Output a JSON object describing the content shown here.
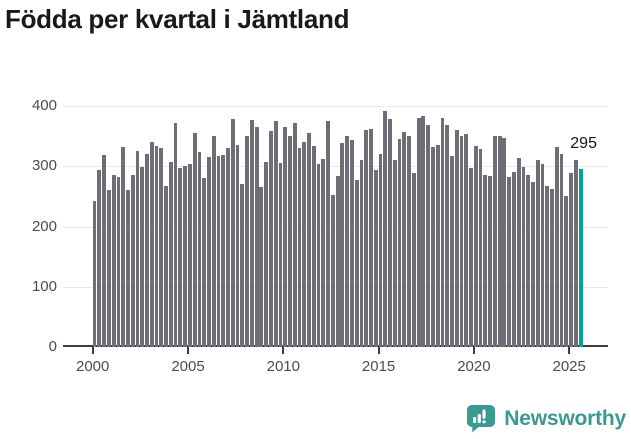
{
  "title": "Födda per kvartal i Jämtland",
  "annotation": {
    "text": "295"
  },
  "footer": {
    "brand": "Newsworthy"
  },
  "colors": {
    "bar": "#6e6e76",
    "highlight": "#00a29a",
    "grid": "#e9e9e9",
    "axis": "#3d3d3d",
    "tick_label": "#4c4c4c",
    "title": "#191919",
    "annotation": "#141414",
    "brand": "#3a9a92"
  },
  "chart_data": {
    "type": "bar",
    "title": "Födda per kvartal i Jämtland",
    "xlabel": "",
    "ylabel": "",
    "ylim": [
      0,
      400
    ],
    "yticks": [
      0,
      100,
      200,
      300,
      400
    ],
    "xticks": [
      2000,
      2005,
      2010,
      2015,
      2020,
      2025
    ],
    "grid": "horizontal",
    "legend": null,
    "highlight_index": 102,
    "highlight_label": "295",
    "categories": [
      "2000Q1",
      "2000Q2",
      "2000Q3",
      "2000Q4",
      "2001Q1",
      "2001Q2",
      "2001Q3",
      "2001Q4",
      "2002Q1",
      "2002Q2",
      "2002Q3",
      "2002Q4",
      "2003Q1",
      "2003Q2",
      "2003Q3",
      "2003Q4",
      "2004Q1",
      "2004Q2",
      "2004Q3",
      "2004Q4",
      "2005Q1",
      "2005Q2",
      "2005Q3",
      "2005Q4",
      "2006Q1",
      "2006Q2",
      "2006Q3",
      "2006Q4",
      "2007Q1",
      "2007Q2",
      "2007Q3",
      "2007Q4",
      "2008Q1",
      "2008Q2",
      "2008Q3",
      "2008Q4",
      "2009Q1",
      "2009Q2",
      "2009Q3",
      "2009Q4",
      "2010Q1",
      "2010Q2",
      "2010Q3",
      "2010Q4",
      "2011Q1",
      "2011Q2",
      "2011Q3",
      "2011Q4",
      "2012Q1",
      "2012Q2",
      "2012Q3",
      "2012Q4",
      "2013Q1",
      "2013Q2",
      "2013Q3",
      "2013Q4",
      "2014Q1",
      "2014Q2",
      "2014Q3",
      "2014Q4",
      "2015Q1",
      "2015Q2",
      "2015Q3",
      "2015Q4",
      "2016Q1",
      "2016Q2",
      "2016Q3",
      "2016Q4",
      "2017Q1",
      "2017Q2",
      "2017Q3",
      "2017Q4",
      "2018Q1",
      "2018Q2",
      "2018Q3",
      "2018Q4",
      "2019Q1",
      "2019Q2",
      "2019Q3",
      "2019Q4",
      "2020Q1",
      "2020Q2",
      "2020Q3",
      "2020Q4",
      "2021Q1",
      "2021Q2",
      "2021Q3",
      "2021Q4",
      "2022Q1",
      "2022Q2",
      "2022Q3",
      "2022Q4",
      "2023Q1",
      "2023Q2",
      "2023Q3",
      "2023Q4",
      "2024Q1",
      "2024Q2",
      "2024Q3",
      "2024Q4",
      "2025Q1",
      "2025Q2",
      "2025Q3"
    ],
    "values": [
      243,
      294,
      318,
      261,
      286,
      282,
      332,
      261,
      286,
      326,
      298,
      321,
      340,
      333,
      331,
      267,
      307,
      371,
      297,
      300,
      303,
      356,
      323,
      281,
      315,
      351,
      317,
      318,
      330,
      378,
      336,
      270,
      351,
      376,
      365,
      266,
      307,
      358,
      375,
      306,
      365,
      351,
      371,
      330,
      340,
      355,
      333,
      304,
      312,
      375,
      252,
      283,
      338,
      351,
      343,
      277,
      311,
      360,
      362,
      293,
      321,
      391,
      379,
      310,
      346,
      357,
      351,
      288,
      380,
      383,
      369,
      332,
      335,
      380,
      369,
      317,
      360,
      351,
      353,
      297,
      334,
      329,
      285,
      283,
      351,
      351,
      347,
      282,
      290,
      313,
      299,
      285,
      274,
      310,
      304,
      268,
      263,
      332,
      321,
      250,
      288,
      310,
      295
    ]
  }
}
